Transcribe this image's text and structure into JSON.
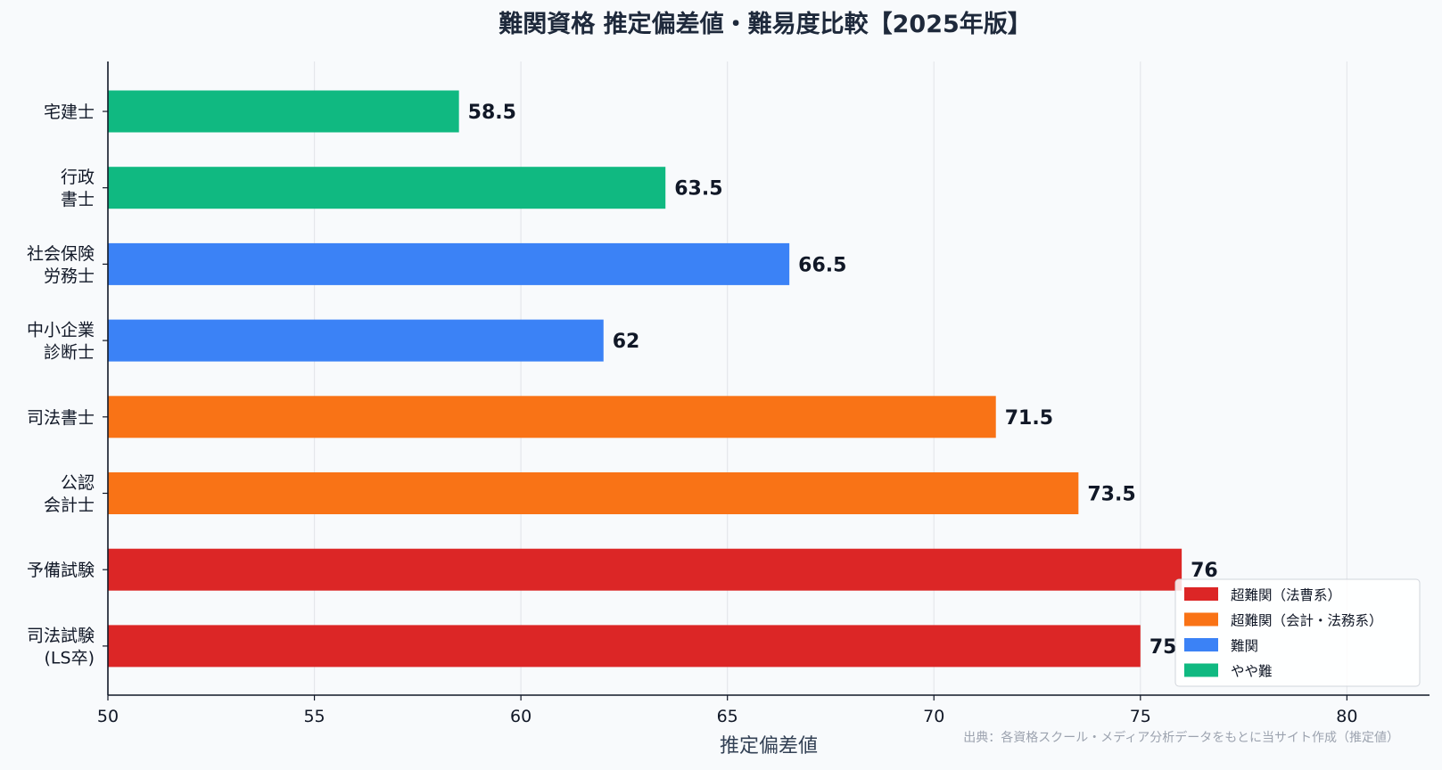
{
  "chart_data": {
    "type": "bar",
    "orientation": "horizontal",
    "title": "難関資格 推定偏差値・難易度比較【2025年版】",
    "xlabel": "推定偏差値",
    "ylabel": "",
    "xlim": [
      50,
      82
    ],
    "xticks": [
      50,
      55,
      60,
      65,
      70,
      75,
      80
    ],
    "grid": "vertical",
    "legend_position": "bottom-right",
    "source_note": "出典：各資格スクール・メディア分析データをもとに当サイト作成（推定値）",
    "categories": [
      [
        "宅建士"
      ],
      [
        "行政",
        "書士"
      ],
      [
        "社会保険",
        "労務士"
      ],
      [
        "中小企業",
        "診断士"
      ],
      [
        "司法書士"
      ],
      [
        "公認",
        "会計士"
      ],
      [
        "予備試験"
      ],
      [
        "司法試験",
        "(LS卒)"
      ]
    ],
    "values": [
      58.5,
      63.5,
      66.5,
      62,
      71.5,
      73.5,
      76,
      75
    ],
    "value_labels": [
      "58.5",
      "63.5",
      "66.5",
      "62",
      "71.5",
      "73.5",
      "76",
      "75"
    ],
    "bar_groups": [
      3,
      3,
      2,
      2,
      1,
      1,
      0,
      0
    ],
    "groups": [
      {
        "name": "超難関（法曹系）",
        "color": "#dc2626"
      },
      {
        "name": "超難関（会計・法務系）",
        "color": "#f97316"
      },
      {
        "name": "難関",
        "color": "#3b82f6"
      },
      {
        "name": "やや難",
        "color": "#10b981"
      }
    ]
  }
}
